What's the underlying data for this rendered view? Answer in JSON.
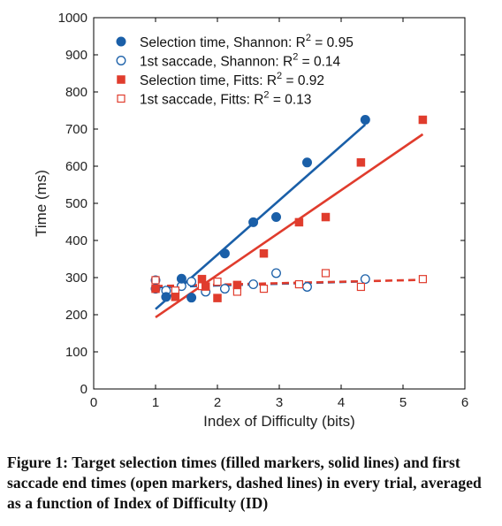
{
  "chart_data": {
    "type": "scatter",
    "title": "",
    "xlabel": "Index of Difficulty (bits)",
    "ylabel": "Time (ms)",
    "xlim": [
      0,
      6
    ],
    "ylim": [
      0,
      1000
    ],
    "xticks": [
      1,
      2,
      3,
      4,
      5,
      6
    ],
    "yticks": [
      0,
      100,
      200,
      300,
      400,
      500,
      600,
      700,
      800,
      900,
      1000
    ],
    "grid": false,
    "legend_position": "top-left",
    "series": [
      {
        "name": "Selection time, Shannon: R",
        "r2_value": "0.95",
        "marker": "filled-circle",
        "color": "#1a5fa8",
        "points": [
          [
            1.0,
            270
          ],
          [
            1.17,
            248
          ],
          [
            1.42,
            297
          ],
          [
            1.58,
            246
          ],
          [
            2.12,
            365
          ],
          [
            2.58,
            449
          ],
          [
            2.95,
            463
          ],
          [
            3.45,
            610
          ],
          [
            4.39,
            725
          ]
        ],
        "fit": [
          [
            1.0,
            215
          ],
          [
            4.39,
            712
          ]
        ],
        "fit_style": "solid"
      },
      {
        "name": "1st saccade, Shannon: R",
        "r2_value": "0.14",
        "marker": "open-circle",
        "color": "#1a5fa8",
        "points": [
          [
            1.0,
            293
          ],
          [
            1.17,
            265
          ],
          [
            1.42,
            277
          ],
          [
            1.58,
            289
          ],
          [
            1.81,
            262
          ],
          [
            2.12,
            270
          ],
          [
            2.58,
            282
          ],
          [
            2.95,
            312
          ],
          [
            3.45,
            275
          ],
          [
            4.39,
            296
          ]
        ],
        "fit": [
          [
            1.0,
            274
          ],
          [
            4.39,
            290
          ]
        ],
        "fit_style": "dashed"
      },
      {
        "name": "Selection time, Fitts: R",
        "r2_value": "0.92",
        "marker": "filled-square",
        "color": "#e03c2d",
        "points": [
          [
            1.0,
            270
          ],
          [
            1.32,
            248
          ],
          [
            1.75,
            296
          ],
          [
            1.81,
            276
          ],
          [
            2.0,
            245
          ],
          [
            2.32,
            280
          ],
          [
            2.75,
            365
          ],
          [
            3.32,
            449
          ],
          [
            3.75,
            463
          ],
          [
            4.32,
            610
          ],
          [
            5.32,
            725
          ]
        ],
        "fit": [
          [
            1.0,
            193
          ],
          [
            5.32,
            686
          ]
        ],
        "fit_style": "solid"
      },
      {
        "name": "1st saccade, Fitts: R",
        "r2_value": "0.13",
        "marker": "open-square",
        "color": "#e03c2d",
        "points": [
          [
            1.0,
            293
          ],
          [
            1.32,
            265
          ],
          [
            1.75,
            277
          ],
          [
            2.0,
            289
          ],
          [
            2.32,
            262
          ],
          [
            2.75,
            270
          ],
          [
            3.32,
            282
          ],
          [
            3.75,
            312
          ],
          [
            4.32,
            275
          ],
          [
            5.32,
            296
          ]
        ],
        "fit": [
          [
            1.0,
            277
          ],
          [
            5.32,
            294
          ]
        ],
        "fit_style": "dashed"
      }
    ]
  },
  "caption": {
    "text": "Figure 1: Target selection times (filled markers, solid lines) and first saccade end times (open markers, dashed lines) in every trial, averaged as a function of Index of Difficulty (ID)"
  },
  "legend": {
    "r2_prefix": "R",
    "r2_superscript": "2",
    "r2_equals": "="
  }
}
